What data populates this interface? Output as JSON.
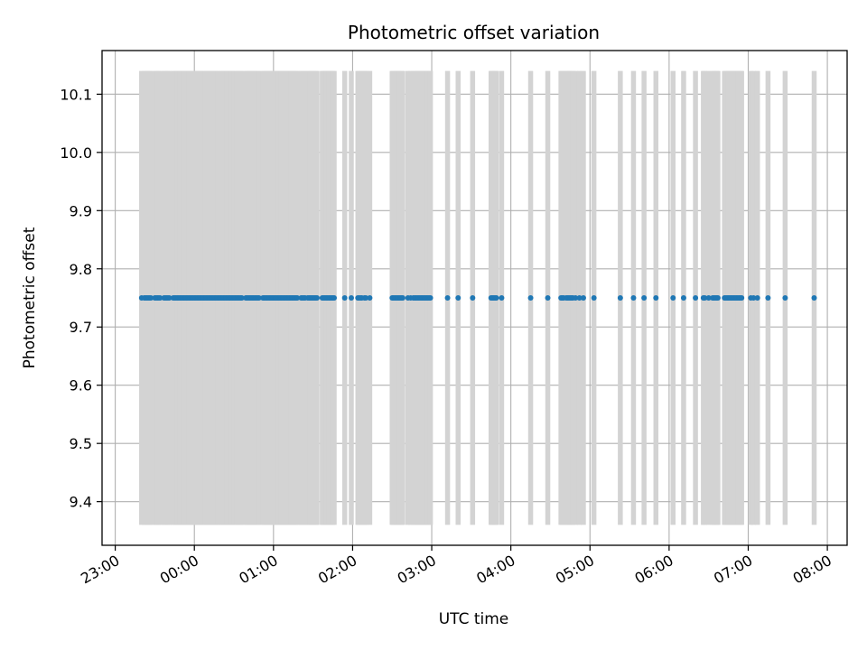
{
  "chart_data": {
    "type": "scatter",
    "title": "Photometric offset variation",
    "xlabel": "UTC time",
    "ylabel": "Photometric offset",
    "xlim": [
      "22:50",
      "08:15"
    ],
    "ylim": [
      9.325,
      10.175
    ],
    "grid": true,
    "x_ticks": [
      "23:00",
      "00:00",
      "01:00",
      "02:00",
      "03:00",
      "04:00",
      "05:00",
      "06:00",
      "07:00",
      "08:00"
    ],
    "y_ticks": [
      9.4,
      9.5,
      9.6,
      9.7,
      9.8,
      9.9,
      10.0,
      10.1
    ],
    "series": [
      {
        "color": "#1f77b4",
        "errorbar_color": "#d3d3d3",
        "y": 9.75,
        "yerr": 0.39,
        "x": [
          "23:20",
          "23:22",
          "23:23",
          "23:24",
          "23:25",
          "23:26",
          "23:27",
          "23:30",
          "23:31",
          "23:32",
          "23:33",
          "23:34",
          "23:37",
          "23:38",
          "23:39",
          "23:40",
          "23:41",
          "23:44",
          "23:45",
          "23:46",
          "23:47",
          "23:48",
          "23:49",
          "23:50",
          "23:51",
          "23:52",
          "23:53",
          "23:54",
          "23:55",
          "23:56",
          "23:57",
          "23:58",
          "23:59",
          "00:00",
          "00:01",
          "00:02",
          "00:03",
          "00:04",
          "00:05",
          "00:06",
          "00:07",
          "00:08",
          "00:09",
          "00:10",
          "00:11",
          "00:12",
          "00:13",
          "00:14",
          "00:15",
          "00:16",
          "00:17",
          "00:18",
          "00:19",
          "00:20",
          "00:21",
          "00:22",
          "00:23",
          "00:24",
          "00:25",
          "00:26",
          "00:27",
          "00:28",
          "00:29",
          "00:30",
          "00:31",
          "00:32",
          "00:33",
          "00:34",
          "00:35",
          "00:36",
          "00:39",
          "00:40",
          "00:41",
          "00:42",
          "00:43",
          "00:44",
          "00:45",
          "00:46",
          "00:47",
          "00:48",
          "00:49",
          "00:52",
          "00:53",
          "00:54",
          "00:55",
          "00:56",
          "00:57",
          "00:58",
          "00:59",
          "01:00",
          "01:01",
          "01:02",
          "01:03",
          "01:04",
          "01:05",
          "01:06",
          "01:07",
          "01:08",
          "01:09",
          "01:10",
          "01:11",
          "01:12",
          "01:13",
          "01:14",
          "01:15",
          "01:16",
          "01:17",
          "01:18",
          "01:21",
          "01:22",
          "01:23",
          "01:24",
          "01:26",
          "01:27",
          "01:28",
          "01:29",
          "01:30",
          "01:31",
          "01:32",
          "01:33",
          "01:37",
          "01:38",
          "01:39",
          "01:40",
          "01:41",
          "01:42",
          "01:43",
          "01:44",
          "01:45",
          "01:46",
          "01:54",
          "01:59",
          "02:04",
          "02:05",
          "02:06",
          "02:07",
          "02:09",
          "02:10",
          "02:13",
          "02:30",
          "02:31",
          "02:32",
          "02:33",
          "02:34",
          "02:35",
          "02:36",
          "02:37",
          "02:38",
          "02:42",
          "02:44",
          "02:46",
          "02:47",
          "02:48",
          "02:49",
          "02:50",
          "02:51",
          "02:52",
          "02:53",
          "02:54",
          "02:55",
          "02:56",
          "02:57",
          "02:58",
          "02:59",
          "03:12",
          "03:20",
          "03:31",
          "03:45",
          "03:46",
          "03:47",
          "03:48",
          "03:49",
          "03:53",
          "04:15",
          "04:28",
          "04:38",
          "04:39",
          "04:40",
          "04:42",
          "04:43",
          "04:44",
          "04:45",
          "04:46",
          "04:47",
          "04:49",
          "04:52",
          "04:55",
          "05:03",
          "05:23",
          "05:33",
          "05:41",
          "05:50",
          "06:03",
          "06:11",
          "06:20",
          "06:26",
          "06:27",
          "06:30",
          "06:33",
          "06:34",
          "06:35",
          "06:36",
          "06:37",
          "06:42",
          "06:43",
          "06:44",
          "06:45",
          "06:46",
          "06:47",
          "06:48",
          "06:49",
          "06:50",
          "06:51",
          "06:52",
          "06:53",
          "06:54",
          "06:55",
          "07:02",
          "07:04",
          "07:07",
          "07:15",
          "07:28",
          "07:50"
        ]
      }
    ]
  }
}
